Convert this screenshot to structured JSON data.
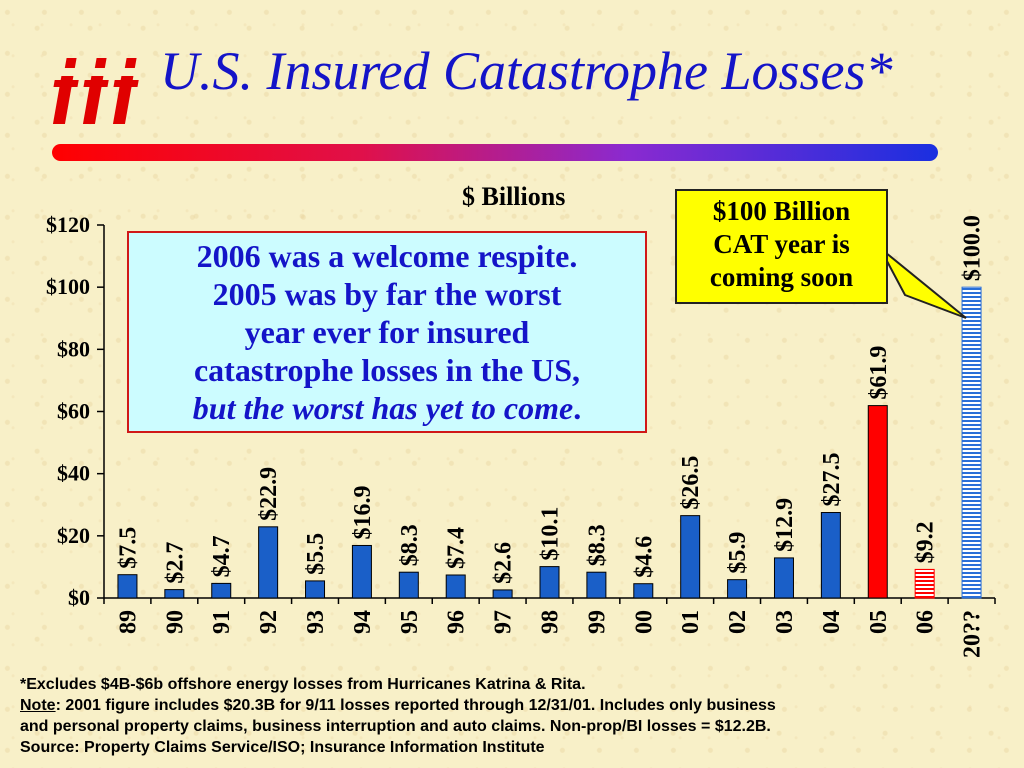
{
  "title": "U.S. Insured Catastrophe Losses*",
  "units_label": "$ Billions",
  "callout": {
    "lines": [
      "$100 Billion",
      "CAT year is",
      "coming soon"
    ]
  },
  "commentary": {
    "lines": [
      "2006 was a welcome respite.",
      "2005 was by far the worst",
      "year ever for insured",
      "catastrophe losses in the US,"
    ],
    "italic_line": "but the worst has yet to come",
    "end_punct": "."
  },
  "notes": {
    "line1": "*Excludes $4B-$6b offshore energy losses from Hurricanes Katrina & Rita.",
    "note_label": "Note",
    "line2_rest": ": 2001 figure includes $20.3B for 9/11 losses reported through 12/31/01.  Includes only business",
    "line3": "and personal property claims, business interruption and auto claims.  Non-prop/BI losses = $12.2B.",
    "line4": "Source:  Property Claims Service/ISO; Insurance Information Institute"
  },
  "colors": {
    "blue_bar": "#1a5fc8",
    "red_bar": "#ff0000",
    "title_blue": "#1414c8",
    "callout_yellow": "#ffff00",
    "box_cyan": "#ccfcff"
  },
  "chart_data": {
    "type": "bar",
    "categories": [
      "89",
      "90",
      "91",
      "92",
      "93",
      "94",
      "95",
      "96",
      "97",
      "98",
      "99",
      "00",
      "01",
      "02",
      "03",
      "04",
      "05",
      "06",
      "20??"
    ],
    "values": [
      7.5,
      2.7,
      4.7,
      22.9,
      5.5,
      16.9,
      8.3,
      7.4,
      2.6,
      10.1,
      8.3,
      4.6,
      26.5,
      5.9,
      12.9,
      27.5,
      61.9,
      9.2,
      100.0
    ],
    "data_labels": [
      "$7.5",
      "$2.7",
      "$4.7",
      "$22.9",
      "$5.5",
      "$16.9",
      "$8.3",
      "$7.4",
      "$2.6",
      "$10.1",
      "$8.3",
      "$4.6",
      "$26.5",
      "$5.9",
      "$12.9",
      "$27.5",
      "$61.9",
      "$9.2",
      "$100.0"
    ],
    "bar_styles": [
      "solid",
      "solid",
      "solid",
      "solid",
      "solid",
      "solid",
      "solid",
      "solid",
      "solid",
      "solid",
      "solid",
      "solid",
      "solid",
      "solid",
      "solid",
      "solid",
      "red",
      "red-striped",
      "blue-striped"
    ],
    "y_ticks": [
      0,
      20,
      40,
      60,
      80,
      100,
      120
    ],
    "y_tick_labels": [
      "$0",
      "$20",
      "$40",
      "$60",
      "$80",
      "$100",
      "$120"
    ],
    "ylim": [
      0,
      120
    ],
    "ylabel": "$ Billions",
    "grid": false
  }
}
